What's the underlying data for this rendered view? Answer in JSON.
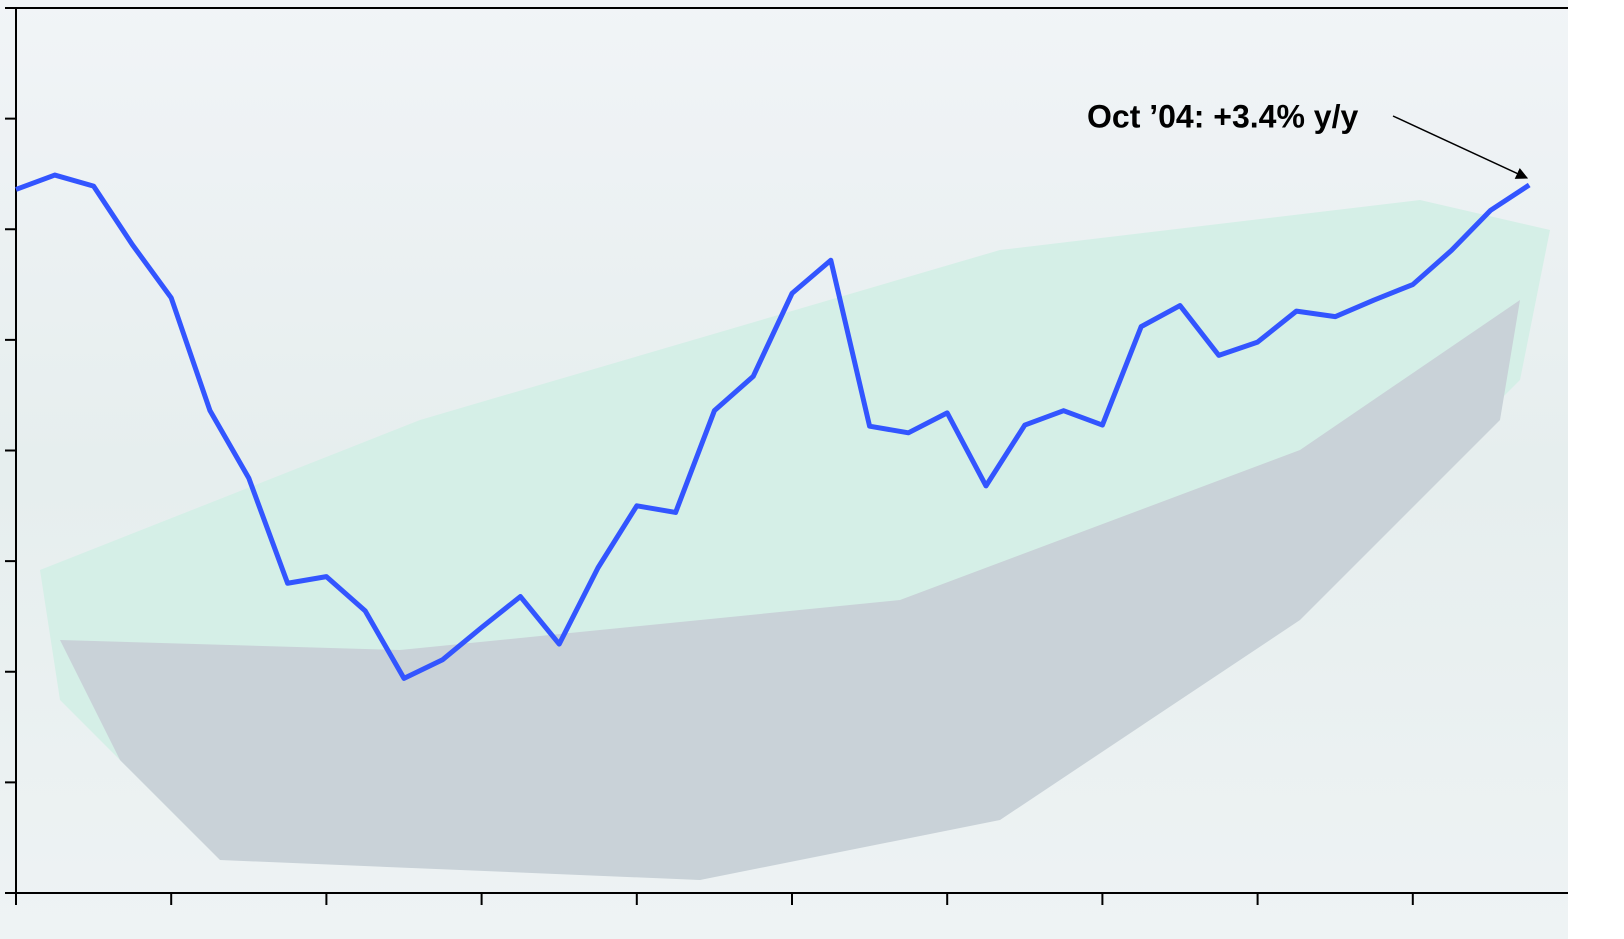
{
  "chart_data": {
    "type": "line",
    "annotation": "Oct ’04: +3.4% y/y",
    "categories": [
      null,
      null,
      null,
      null,
      null,
      null,
      null,
      null,
      null,
      null,
      null,
      null,
      null,
      null,
      null,
      null,
      null,
      null,
      null,
      null,
      null,
      null,
      null,
      null,
      null,
      null,
      null,
      null,
      null,
      null,
      null,
      null,
      null,
      null,
      null,
      null,
      null,
      null,
      null,
      null
    ],
    "series": [
      {
        "color": "#3355ff",
        "values": [
          3.36,
          3.49,
          3.39,
          2.86,
          2.38,
          1.36,
          0.75,
          -0.2,
          -0.14,
          -0.45,
          -1.06,
          -0.89,
          -0.6,
          -0.32,
          -0.75,
          -0.06,
          0.5,
          0.44,
          1.36,
          1.67,
          2.42,
          2.72,
          1.22,
          1.16,
          1.34,
          0.68,
          1.23,
          1.36,
          1.23,
          2.12,
          2.31,
          1.86,
          1.98,
          2.26,
          2.21,
          2.36,
          2.5,
          2.81,
          3.17,
          3.4
        ]
      }
    ],
    "ylim": [
      -3,
      5
    ],
    "yticks": [
      -3,
      -2,
      -1,
      0,
      1,
      2,
      3,
      4,
      5
    ]
  }
}
